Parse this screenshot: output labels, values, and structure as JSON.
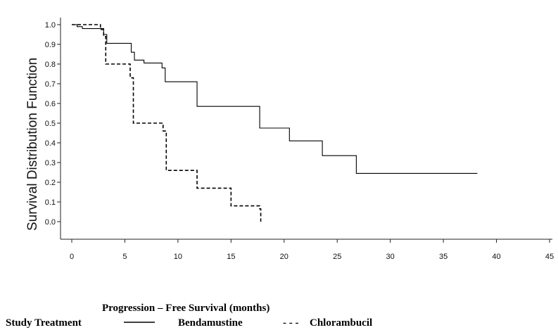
{
  "chart_data": {
    "type": "line",
    "xlabel": "Progression – Free Survival (months)",
    "ylabel": "Survival Distribution Function",
    "xlim": [
      0,
      45
    ],
    "ylim": [
      0.0,
      1.0
    ],
    "xticks": [
      "0",
      "5",
      "10",
      "15",
      "20",
      "25",
      "30",
      "35",
      "40",
      "45"
    ],
    "yticks": [
      "0.0",
      "0.1",
      "0.2",
      "0.3",
      "0.4",
      "0.5",
      "0.6",
      "0.7",
      "0.8",
      "0.9",
      "1.0"
    ],
    "grid": false,
    "legend": {
      "title": "Study Treatment",
      "placement": "bottom"
    },
    "series": [
      {
        "name": "Bendamustine",
        "style": "solid",
        "x": [
          0,
          0.5,
          1.0,
          3.0,
          3.3,
          5.6,
          5.9,
          6.8,
          8.5,
          8.8,
          11.8,
          17.7,
          20.5,
          23.6,
          26.8,
          38.2
        ],
        "y": [
          1.0,
          0.99,
          0.98,
          0.95,
          0.905,
          0.86,
          0.82,
          0.805,
          0.78,
          0.71,
          0.585,
          0.475,
          0.41,
          0.335,
          0.245,
          0.245
        ]
      },
      {
        "name": "Chlorambucil",
        "style": "dashed",
        "x": [
          0,
          2.7,
          3.0,
          3.2,
          5.5,
          5.8,
          8.6,
          8.9,
          11.6,
          11.8,
          14.7,
          15.0,
          17.7,
          17.8
        ],
        "y": [
          1.0,
          0.975,
          0.94,
          0.8,
          0.73,
          0.5,
          0.46,
          0.26,
          0.26,
          0.17,
          0.17,
          0.08,
          0.065,
          0.0
        ]
      }
    ]
  }
}
